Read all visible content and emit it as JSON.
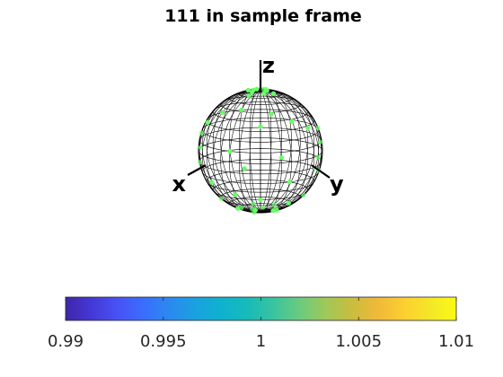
{
  "chart_data": {
    "type": "scatter",
    "title": "111  in sample frame",
    "projection": "3D sphere (pole figure)",
    "axis_labels": {
      "x": "x",
      "y": "y",
      "z": "z"
    },
    "marker_color": "#66ff66",
    "points": [
      {
        "az": 90,
        "el": 84
      },
      {
        "az": 140,
        "el": 82
      },
      {
        "az": 200,
        "el": 80
      },
      {
        "az": 250,
        "el": 83
      },
      {
        "az": 300,
        "el": 81
      },
      {
        "az": 20,
        "el": 80
      },
      {
        "az": 60,
        "el": 76
      },
      {
        "az": 170,
        "el": 74
      },
      {
        "az": 230,
        "el": 75
      },
      {
        "az": 320,
        "el": 73
      },
      {
        "az": 300,
        "el": 45
      },
      {
        "az": 330,
        "el": 52
      },
      {
        "az": 15,
        "el": 48
      },
      {
        "az": 40,
        "el": 38
      },
      {
        "az": 60,
        "el": 28
      },
      {
        "az": 280,
        "el": 30
      },
      {
        "az": 0,
        "el": 35
      },
      {
        "az": 100,
        "el": 20
      },
      {
        "az": 105,
        "el": 5
      },
      {
        "az": 110,
        "el": -10
      },
      {
        "az": 95,
        "el": -20
      },
      {
        "az": 260,
        "el": 15
      },
      {
        "az": 255,
        "el": 0
      },
      {
        "az": 265,
        "el": -12
      },
      {
        "az": 330,
        "el": 10
      },
      {
        "az": 345,
        "el": -5
      },
      {
        "az": 20,
        "el": 5
      },
      {
        "az": 30,
        "el": -20
      },
      {
        "az": 300,
        "el": -25
      },
      {
        "az": 0,
        "el": -40
      },
      {
        "az": 330,
        "el": -35
      },
      {
        "az": 200,
        "el": -70
      },
      {
        "az": 260,
        "el": -72
      },
      {
        "az": 300,
        "el": -65
      },
      {
        "az": 350,
        "el": -62
      },
      {
        "az": 30,
        "el": -66
      },
      {
        "az": 60,
        "el": -72
      },
      {
        "az": 100,
        "el": -75
      },
      {
        "az": 140,
        "el": -70
      },
      {
        "az": 170,
        "el": -78
      },
      {
        "az": 230,
        "el": -80
      },
      {
        "az": 330,
        "el": -78
      },
      {
        "az": 45,
        "el": -50
      },
      {
        "az": 280,
        "el": -50
      },
      {
        "az": 80,
        "el": -45
      }
    ],
    "colorbar": {
      "limits": [
        0.99,
        1.01
      ],
      "tick_labels": [
        "0.99",
        "0.995",
        "1",
        "1.005",
        "1.01"
      ],
      "colormap": "parula",
      "colormap_stops": [
        "#3e26a8",
        "#4538d7",
        "#4852f4",
        "#3a6efd",
        "#2b8af0",
        "#1aa1df",
        "#0fb2cf",
        "#17bbb9",
        "#3ac49e",
        "#6bcb7f",
        "#a0c858",
        "#c9bd3e",
        "#f0b93a",
        "#fccf30",
        "#f5e628",
        "#f9fb14"
      ]
    }
  }
}
